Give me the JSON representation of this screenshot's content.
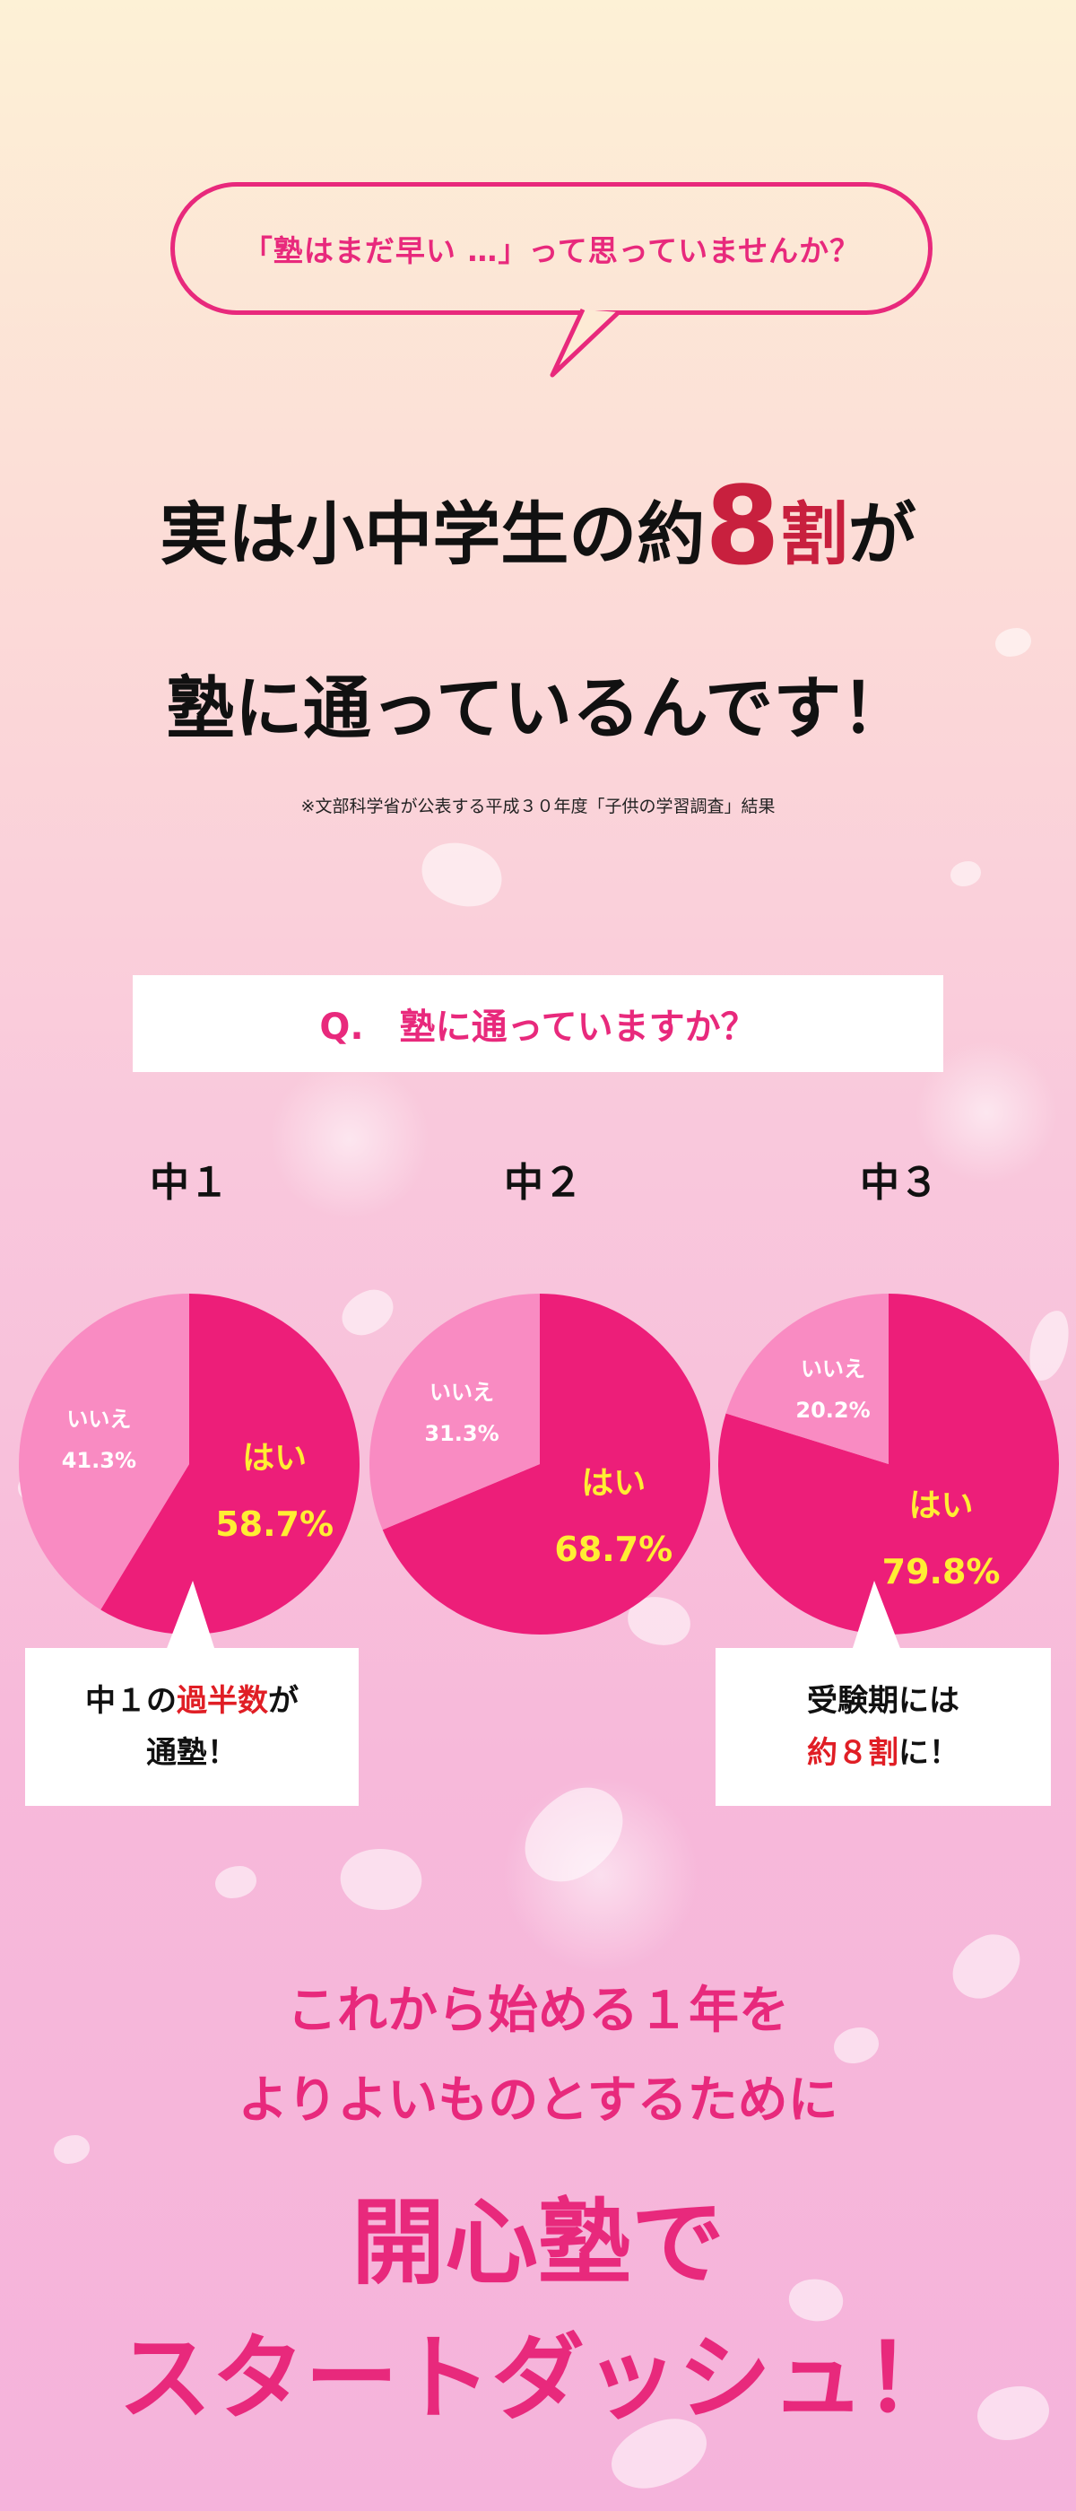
{
  "speech_bubble": {
    "text": "「塾はまだ早い …」って思っていませんか？"
  },
  "headline": {
    "line1_pre": "実は小中学生の約",
    "line1_number": "8",
    "line1_unit": "割",
    "line1_post": "が",
    "line2": "塾に通っているんです！"
  },
  "source_note": "※文部科学省が公表する平成３０年度「子供の学習調査」結果",
  "question": "Q.　塾に通っていますか？",
  "colors": {
    "yes": "#ed1e79",
    "no": "#f98bc2",
    "accent": "#e8297c",
    "value_text": "#ffee33",
    "emphasis_red": "#e01e25"
  },
  "chart_data": [
    {
      "type": "pie",
      "title": "中１",
      "categories": [
        "はい",
        "いいえ"
      ],
      "values": [
        58.7,
        41.3
      ],
      "labels": [
        "58.7%",
        "41.3%"
      ]
    },
    {
      "type": "pie",
      "title": "中２",
      "categories": [
        "はい",
        "いいえ"
      ],
      "values": [
        68.7,
        31.3
      ],
      "labels": [
        "68.7%",
        "31.3%"
      ]
    },
    {
      "type": "pie",
      "title": "中３",
      "categories": [
        "はい",
        "いいえ"
      ],
      "values": [
        79.8,
        20.2
      ],
      "labels": [
        "79.8%",
        "20.2%"
      ]
    }
  ],
  "callout_left": {
    "line1_pre": "中１の",
    "line1_red": "過半数",
    "line1_post": "が",
    "line2": "通塾！"
  },
  "callout_right": {
    "line1": "受験期には",
    "line2_red": "約８割",
    "line2_post": "に！"
  },
  "tagline": {
    "line1": "これから始める１年を",
    "line2": "よりよいものとするために",
    "line3": "開心塾で",
    "line4": "スタートダッシュ！"
  }
}
